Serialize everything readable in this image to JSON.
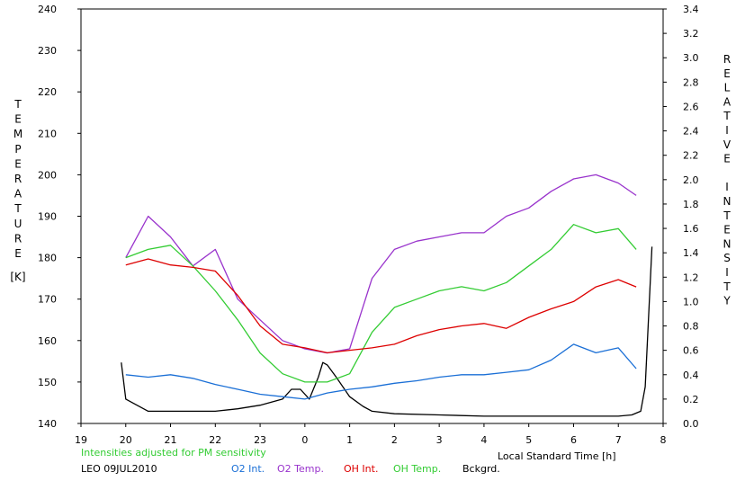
{
  "chart_data": {
    "type": "line",
    "xlabel": "Local Standard Time [h]",
    "ylabel_left_letters": [
      "T",
      "E",
      "M",
      "P",
      "E",
      "R",
      "A",
      "T",
      "U",
      "R",
      "E"
    ],
    "ylabel_left_unit": "[K]",
    "ylabel_right_letters": [
      "R",
      "E",
      "L",
      "A",
      "T",
      "I",
      "V",
      "E",
      "",
      "I",
      "N",
      "T",
      "E",
      "N",
      "S",
      "I",
      "T",
      "Y"
    ],
    "x_ticks": [
      "19",
      "20",
      "21",
      "22",
      "23",
      "0",
      "1",
      "2",
      "3",
      "4",
      "5",
      "6",
      "7",
      "8"
    ],
    "xlim": [
      19,
      32
    ],
    "y_left_ticks": [
      "140",
      "150",
      "160",
      "170",
      "180",
      "190",
      "200",
      "210",
      "220",
      "230",
      "240"
    ],
    "ylim_left": [
      140,
      240
    ],
    "y_right_ticks": [
      "0.0",
      "0.2",
      "0.4",
      "0.6",
      "0.8",
      "1.0",
      "1.2",
      "1.4",
      "1.6",
      "1.8",
      "2.0",
      "2.2",
      "2.4",
      "2.6",
      "2.8",
      "3.0",
      "3.2",
      "3.4"
    ],
    "ylim_right": [
      0,
      3.4
    ],
    "note": "Intensities adjusted for PM sensitivity",
    "station": "LEO 09JUL2010",
    "series": [
      {
        "name": "O2 Int.",
        "axis": "right",
        "color": "#1a6fd6",
        "x": [
          20.0,
          20.5,
          21.0,
          21.5,
          22.0,
          22.5,
          23.0,
          23.5,
          24.0,
          24.5,
          25.0,
          25.5,
          26.0,
          26.5,
          27.0,
          27.5,
          28.0,
          28.5,
          29.0,
          29.5,
          30.0,
          30.5,
          31.0,
          31.4
        ],
        "y": [
          0.4,
          0.38,
          0.4,
          0.37,
          0.32,
          0.28,
          0.24,
          0.22,
          0.2,
          0.25,
          0.28,
          0.3,
          0.33,
          0.35,
          0.38,
          0.4,
          0.4,
          0.42,
          0.44,
          0.52,
          0.65,
          0.58,
          0.62,
          0.45
        ]
      },
      {
        "name": "O2 Temp.",
        "axis": "left",
        "color": "#9933cc",
        "x": [
          20.0,
          20.5,
          21.0,
          21.5,
          22.0,
          22.5,
          23.0,
          23.5,
          24.0,
          24.5,
          25.0,
          25.5,
          26.0,
          26.5,
          27.0,
          27.5,
          28.0,
          28.5,
          29.0,
          29.5,
          30.0,
          30.5,
          31.0,
          31.4
        ],
        "y": [
          180,
          190,
          185,
          178,
          182,
          170,
          165,
          160,
          158,
          157,
          158,
          175,
          182,
          184,
          185,
          186,
          186,
          190,
          192,
          196,
          199,
          200,
          198,
          195
        ]
      },
      {
        "name": "OH Int.",
        "axis": "right",
        "color": "#dd0000",
        "x": [
          20.0,
          20.5,
          21.0,
          21.5,
          22.0,
          22.5,
          23.0,
          23.5,
          24.0,
          24.5,
          25.0,
          25.5,
          26.0,
          26.5,
          27.0,
          27.5,
          28.0,
          28.5,
          29.0,
          29.5,
          30.0,
          30.5,
          31.0,
          31.4
        ],
        "y": [
          1.3,
          1.35,
          1.3,
          1.28,
          1.25,
          1.05,
          0.8,
          0.65,
          0.62,
          0.58,
          0.6,
          0.62,
          0.65,
          0.72,
          0.77,
          0.8,
          0.82,
          0.78,
          0.87,
          0.94,
          1.0,
          1.12,
          1.18,
          1.12
        ]
      },
      {
        "name": "OH Temp.",
        "axis": "left",
        "color": "#33cc33",
        "x": [
          20.0,
          20.5,
          21.0,
          21.5,
          22.0,
          22.5,
          23.0,
          23.5,
          24.0,
          24.5,
          25.0,
          25.5,
          26.0,
          26.5,
          27.0,
          27.5,
          28.0,
          28.5,
          29.0,
          29.5,
          30.0,
          30.5,
          31.0,
          31.4
        ],
        "y": [
          180,
          182,
          183,
          178,
          172,
          165,
          157,
          152,
          150,
          150,
          152,
          162,
          168,
          170,
          172,
          173,
          172,
          174,
          178,
          182,
          188,
          186,
          187,
          182
        ]
      },
      {
        "name": "Bckgrd.",
        "axis": "right",
        "color": "#000000",
        "x": [
          19.9,
          20.0,
          20.5,
          21.0,
          22.0,
          22.5,
          23.0,
          23.5,
          23.7,
          23.9,
          24.1,
          24.3,
          24.4,
          24.5,
          24.7,
          25.0,
          25.3,
          25.5,
          26.0,
          27.0,
          28.0,
          29.0,
          30.0,
          31.0,
          31.3,
          31.5,
          31.6,
          31.75
        ],
        "y": [
          0.5,
          0.2,
          0.1,
          0.1,
          0.1,
          0.12,
          0.15,
          0.2,
          0.28,
          0.28,
          0.2,
          0.38,
          0.5,
          0.48,
          0.38,
          0.22,
          0.14,
          0.1,
          0.08,
          0.07,
          0.06,
          0.06,
          0.06,
          0.06,
          0.07,
          0.1,
          0.3,
          1.45
        ]
      }
    ]
  }
}
